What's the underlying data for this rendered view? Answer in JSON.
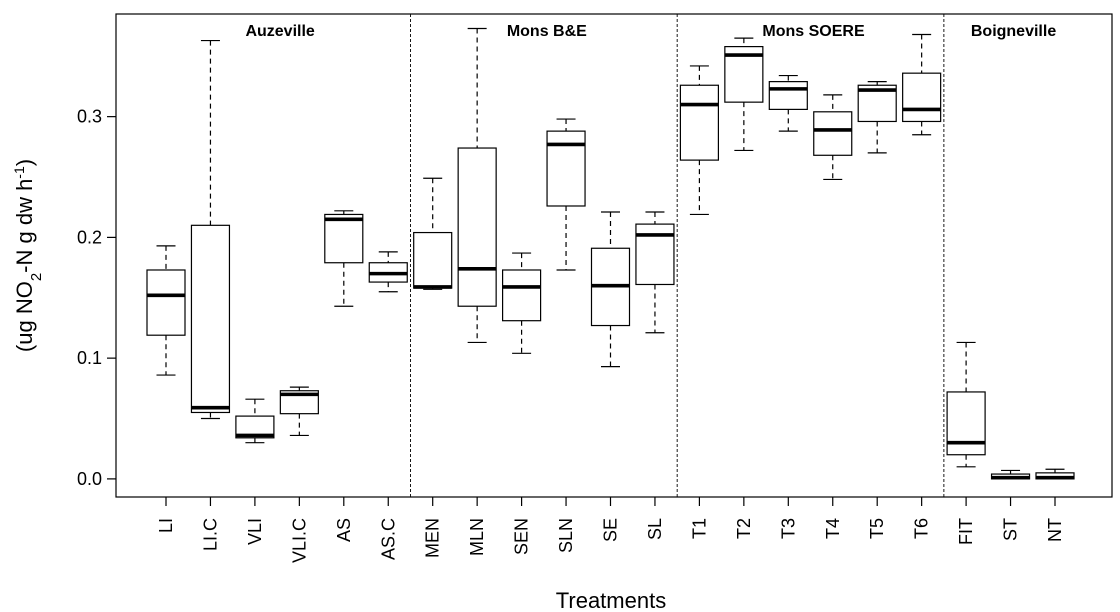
{
  "chart_data": {
    "type": "box",
    "xlabel": "Treatments",
    "ylabel": "(ug NO2-N g dw h-1)",
    "ylabel_parts": {
      "pre": "(ug NO",
      "sub": "2",
      "mid": "-N g dw h",
      "sup": "-1",
      "post": ")"
    },
    "ylim": [
      -0.015,
      0.385
    ],
    "yticks": [
      0.0,
      0.1,
      0.2,
      0.3
    ],
    "ytick_labels": [
      "0.0",
      "0.1",
      "0.2",
      "0.3"
    ],
    "grid": false,
    "legend": "none",
    "panels": [
      {
        "title": "Auzeville",
        "categories": [
          "LI",
          "LI.C",
          "VLI",
          "VLI.C",
          "AS",
          "AS.C"
        ]
      },
      {
        "title": "Mons B&E",
        "categories": [
          "MEN",
          "MLN",
          "SEN",
          "SLN",
          "SE",
          "SL"
        ]
      },
      {
        "title": "Mons SOERE",
        "categories": [
          "T1",
          "T2",
          "T3",
          "T4",
          "T5",
          "T6"
        ]
      },
      {
        "title": "Boigneville",
        "categories": [
          "FIT",
          "ST",
          "NT"
        ]
      }
    ],
    "boxes": [
      {
        "label": "LI",
        "min": 0.086,
        "q1": 0.119,
        "median": 0.152,
        "q3": 0.173,
        "max": 0.193
      },
      {
        "label": "LI.C",
        "min": 0.05,
        "q1": 0.055,
        "median": 0.059,
        "q3": 0.21,
        "max": 0.363
      },
      {
        "label": "VLI",
        "min": 0.03,
        "q1": 0.034,
        "median": 0.036,
        "q3": 0.052,
        "max": 0.066
      },
      {
        "label": "VLI.C",
        "min": 0.036,
        "q1": 0.054,
        "median": 0.07,
        "q3": 0.073,
        "max": 0.076
      },
      {
        "label": "AS",
        "min": 0.143,
        "q1": 0.179,
        "median": 0.215,
        "q3": 0.219,
        "max": 0.222
      },
      {
        "label": "AS.C",
        "min": 0.155,
        "q1": 0.163,
        "median": 0.17,
        "q3": 0.179,
        "max": 0.188
      },
      {
        "label": "MEN",
        "min": 0.157,
        "q1": 0.158,
        "median": 0.159,
        "q3": 0.204,
        "max": 0.249
      },
      {
        "label": "MLN",
        "min": 0.113,
        "q1": 0.143,
        "median": 0.174,
        "q3": 0.274,
        "max": 0.373
      },
      {
        "label": "SEN",
        "min": 0.104,
        "q1": 0.131,
        "median": 0.159,
        "q3": 0.173,
        "max": 0.187
      },
      {
        "label": "SLN",
        "min": 0.173,
        "q1": 0.226,
        "median": 0.277,
        "q3": 0.288,
        "max": 0.298
      },
      {
        "label": "SE",
        "min": 0.093,
        "q1": 0.127,
        "median": 0.16,
        "q3": 0.191,
        "max": 0.221
      },
      {
        "label": "SL",
        "min": 0.121,
        "q1": 0.161,
        "median": 0.202,
        "q3": 0.211,
        "max": 0.221
      },
      {
        "label": "T1",
        "min": 0.219,
        "q1": 0.264,
        "median": 0.31,
        "q3": 0.326,
        "max": 0.342
      },
      {
        "label": "T2",
        "min": 0.272,
        "q1": 0.312,
        "median": 0.351,
        "q3": 0.358,
        "max": 0.365
      },
      {
        "label": "T3",
        "min": 0.288,
        "q1": 0.306,
        "median": 0.323,
        "q3": 0.329,
        "max": 0.334
      },
      {
        "label": "T4",
        "min": 0.248,
        "q1": 0.268,
        "median": 0.289,
        "q3": 0.304,
        "max": 0.318
      },
      {
        "label": "T5",
        "min": 0.27,
        "q1": 0.296,
        "median": 0.322,
        "q3": 0.326,
        "max": 0.329
      },
      {
        "label": "T6",
        "min": 0.285,
        "q1": 0.296,
        "median": 0.306,
        "q3": 0.336,
        "max": 0.368
      },
      {
        "label": "FIT",
        "min": 0.01,
        "q1": 0.02,
        "median": 0.03,
        "q3": 0.072,
        "max": 0.113
      },
      {
        "label": "ST",
        "min": 0.0,
        "q1": 0.0,
        "median": 0.001,
        "q3": 0.004,
        "max": 0.007
      },
      {
        "label": "NT",
        "min": 0.0,
        "q1": 0.0,
        "median": 0.001,
        "q3": 0.005,
        "max": 0.008
      }
    ]
  }
}
